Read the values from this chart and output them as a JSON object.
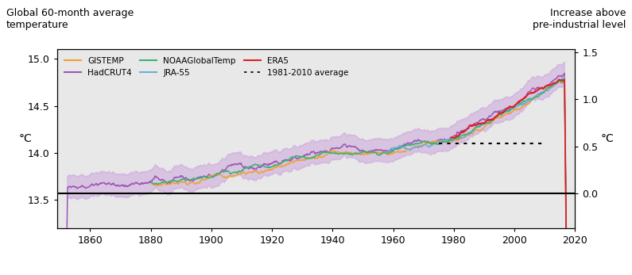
{
  "title_left": "Global 60-month average\ntemperature",
  "title_right": "Increase above\npre-industrial level",
  "ylabel_left": "°C",
  "ylabel_right": "°C",
  "ylim_left": [
    13.2,
    15.1
  ],
  "ylim_right": [
    -0.3,
    1.5
  ],
  "xlim": [
    1849,
    2020
  ],
  "xticks": [
    1860,
    1880,
    1900,
    1920,
    1940,
    1960,
    1980,
    2000,
    2020
  ],
  "yticks_left": [
    13.5,
    14.0,
    14.5,
    15.0
  ],
  "yticks_right": [
    0.0,
    0.5,
    1.0,
    1.5
  ],
  "baseline_temp": 13.57,
  "ref_period_start": 1981,
  "ref_period_end": 2010,
  "ref_line_temp": 14.1,
  "background_color": "#e8e8e8",
  "footer_color": "#8b1a2a",
  "colors": {
    "GISTEMP": "#f0a030",
    "JRA55": "#6baed6",
    "HadCRUT4": "#9b59b6",
    "HadCRUT4_fill": "#c9a0dc",
    "ERA5": "#e02020",
    "NOAAGlobalTemp": "#3cb371"
  },
  "legend_entries": [
    "GISTEMP",
    "HadCRUT4",
    "NOAAGlobalTemp",
    "JRA-55",
    "ERA5",
    "1981-2010 average"
  ]
}
